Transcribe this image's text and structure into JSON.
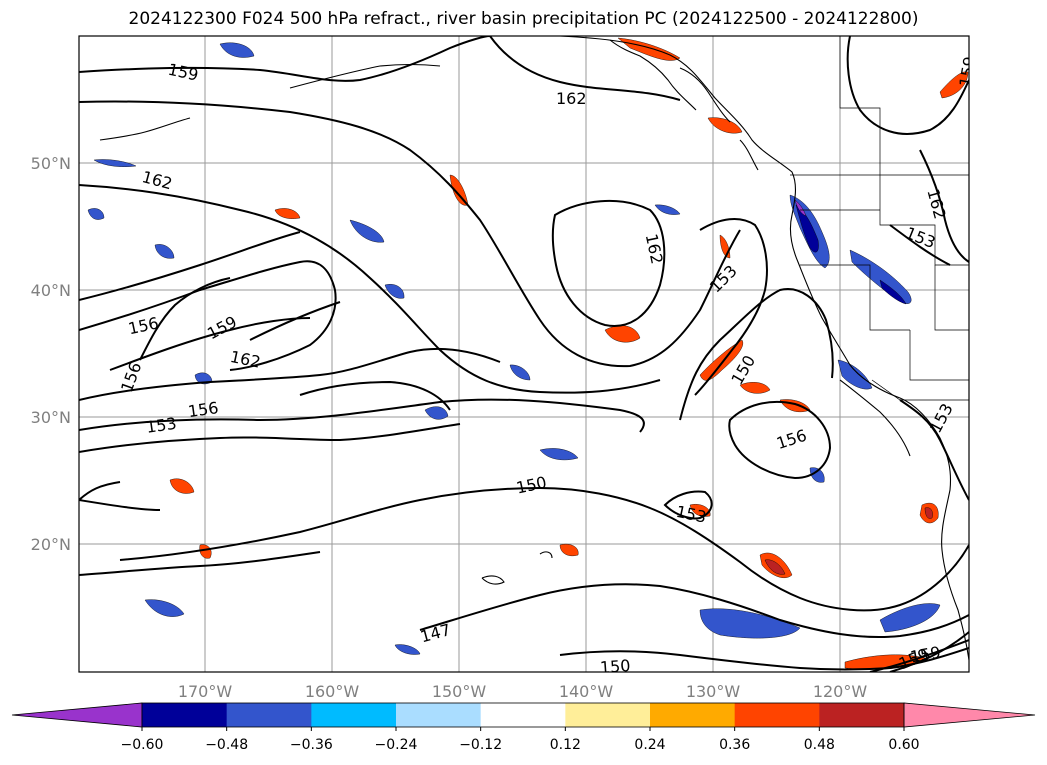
{
  "title": "2024122300 F024 500 hPa refract., river basin precipitation PC (2024122500 - 2024122800)",
  "longitude_ticks": [
    "170°W",
    "160°W",
    "150°W",
    "140°W",
    "130°W",
    "120°W"
  ],
  "latitude_ticks": [
    "50°N",
    "40°N",
    "30°N",
    "20°N"
  ],
  "colorbar": {
    "colors": [
      "#9933cc",
      "#000099",
      "#3355cc",
      "#00bbff",
      "#aaddff",
      "#ffffff",
      "#ffee99",
      "#ffaa00",
      "#ff4400",
      "#bb2222",
      "#ff88aa"
    ],
    "labels": [
      "−0.60",
      "−0.48",
      "−0.36",
      "−0.24",
      "−0.12",
      "0.12",
      "0.24",
      "0.36",
      "0.48",
      "0.60"
    ]
  },
  "contour_labels": [
    "159",
    "162",
    "162",
    "162",
    "159",
    "156",
    "159",
    "162",
    "156",
    "153",
    "156",
    "150",
    "153",
    "162",
    "153",
    "150",
    "156",
    "153",
    "153",
    "159",
    "147",
    "150",
    "159"
  ]
}
